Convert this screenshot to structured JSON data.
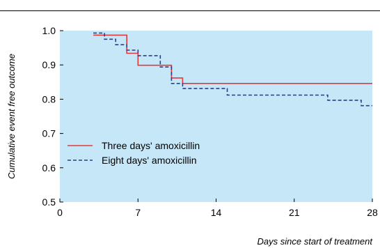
{
  "chart_data": {
    "type": "line",
    "xlabel": "Days since start of treatment",
    "ylabel": "Cumulative event free outcome",
    "xlim": [
      0,
      28
    ],
    "ylim": [
      0.5,
      1.0
    ],
    "x_ticks": [
      "0",
      "7",
      "14",
      "21",
      "28"
    ],
    "y_ticks": [
      "0.5",
      "0.6",
      "0.7",
      "0.8",
      "0.9",
      "1.0"
    ],
    "grid": false,
    "background_color": "#c6e7f7",
    "legend_position": "lower-left",
    "series": [
      {
        "name": "Three days' amoxicillin",
        "color": "#e03a3e",
        "style": "solid",
        "x": [
          3,
          6,
          6,
          7,
          7,
          10,
          10,
          11,
          11,
          28
        ],
        "y": [
          0.987,
          0.987,
          0.934,
          0.934,
          0.899,
          0.899,
          0.862,
          0.862,
          0.846,
          0.846
        ]
      },
      {
        "name": "Eight days' amoxicillin",
        "color": "#2b3f8c",
        "style": "dashed",
        "x": [
          3,
          4,
          4,
          5,
          5,
          6,
          6,
          7,
          7,
          9,
          9,
          10,
          10,
          11,
          11,
          15,
          15,
          24,
          24,
          27,
          27,
          28
        ],
        "y": [
          0.993,
          0.993,
          0.975,
          0.975,
          0.959,
          0.959,
          0.943,
          0.943,
          0.927,
          0.927,
          0.894,
          0.894,
          0.846,
          0.846,
          0.831,
          0.831,
          0.812,
          0.812,
          0.797,
          0.797,
          0.781,
          0.781
        ]
      }
    ]
  }
}
